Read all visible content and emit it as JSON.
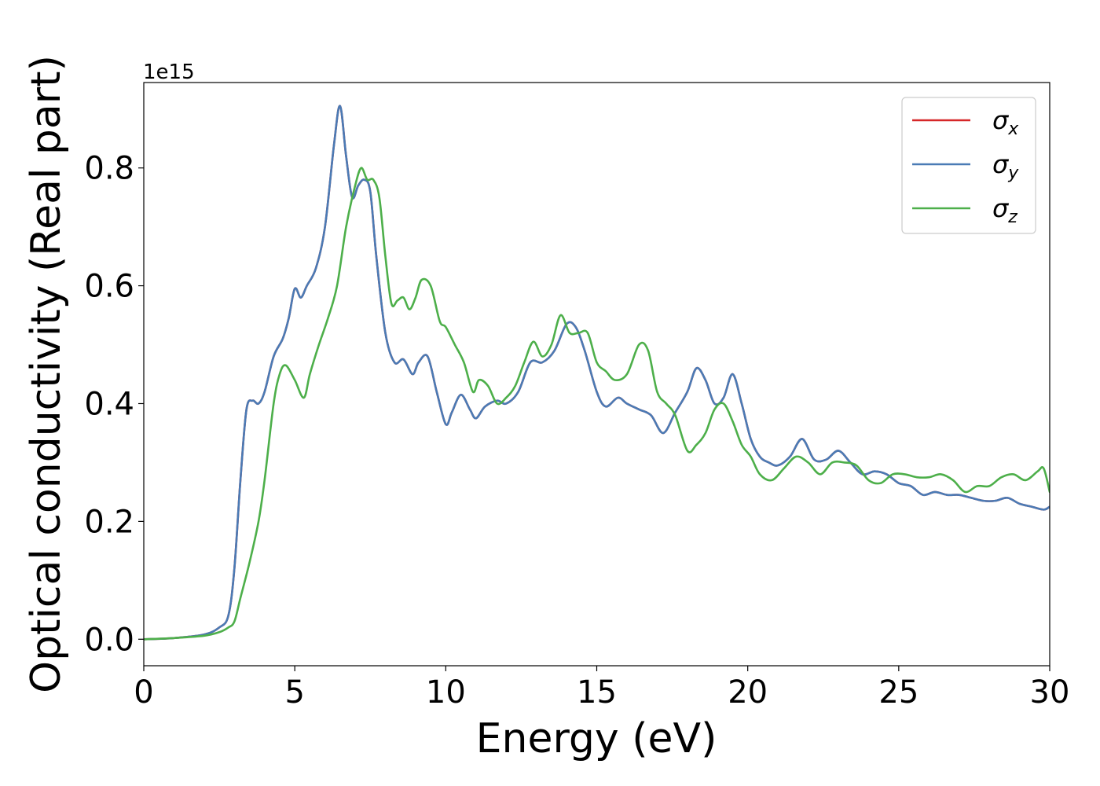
{
  "chart_data": {
    "type": "line",
    "title": "",
    "xlabel": "Energy (eV)",
    "ylabel": "Optical conductivity (Real part)",
    "y_offset_label": "1e15",
    "xlim": [
      0,
      30
    ],
    "ylim": [
      -0.045,
      0.945
    ],
    "x_ticks": [
      0,
      5,
      10,
      15,
      20,
      25,
      30
    ],
    "x_tick_labels": [
      "0",
      "5",
      "10",
      "15",
      "20",
      "25",
      "30"
    ],
    "y_ticks": [
      0.0,
      0.2,
      0.4,
      0.6,
      0.8
    ],
    "y_tick_labels": [
      "0.0",
      "0.2",
      "0.4",
      "0.6",
      "0.8"
    ],
    "grid": false,
    "legend_position": "top-right",
    "series": [
      {
        "name": "σx",
        "symbol": "σ",
        "subscript": "x",
        "color": "#d62728",
        "x": [
          0,
          1,
          2,
          2.5,
          2.8,
          3.0,
          3.2,
          3.4,
          3.6,
          3.8,
          4.0,
          4.3,
          4.6,
          4.8,
          5.0,
          5.2,
          5.4,
          5.7,
          6.0,
          6.3,
          6.5,
          6.7,
          6.9,
          7.1,
          7.3,
          7.5,
          7.7,
          8.0,
          8.3,
          8.6,
          8.9,
          9.1,
          9.4,
          9.7,
          10.0,
          10.2,
          10.5,
          10.8,
          11.0,
          11.3,
          11.7,
          12.0,
          12.4,
          12.8,
          13.2,
          13.6,
          14.0,
          14.3,
          14.6,
          15.0,
          15.3,
          15.7,
          16.0,
          16.4,
          16.8,
          17.2,
          17.6,
          18.0,
          18.3,
          18.6,
          18.9,
          19.2,
          19.5,
          19.8,
          20.1,
          20.4,
          20.7,
          21.0,
          21.4,
          21.8,
          22.2,
          22.6,
          23.0,
          23.4,
          23.8,
          24.2,
          24.6,
          25.0,
          25.4,
          25.8,
          26.2,
          26.6,
          27.0,
          27.4,
          27.8,
          28.2,
          28.6,
          29.0,
          29.4,
          29.8,
          30.0
        ],
        "values": [
          0.0,
          0.002,
          0.008,
          0.02,
          0.04,
          0.12,
          0.27,
          0.39,
          0.405,
          0.4,
          0.42,
          0.48,
          0.51,
          0.545,
          0.595,
          0.58,
          0.6,
          0.63,
          0.7,
          0.84,
          0.905,
          0.82,
          0.75,
          0.77,
          0.78,
          0.76,
          0.65,
          0.52,
          0.47,
          0.475,
          0.45,
          0.47,
          0.48,
          0.42,
          0.365,
          0.385,
          0.415,
          0.39,
          0.375,
          0.395,
          0.405,
          0.4,
          0.42,
          0.47,
          0.47,
          0.49,
          0.535,
          0.53,
          0.49,
          0.42,
          0.395,
          0.41,
          0.4,
          0.39,
          0.38,
          0.35,
          0.385,
          0.42,
          0.46,
          0.44,
          0.4,
          0.41,
          0.45,
          0.4,
          0.34,
          0.31,
          0.3,
          0.295,
          0.31,
          0.34,
          0.305,
          0.305,
          0.32,
          0.3,
          0.28,
          0.285,
          0.28,
          0.265,
          0.26,
          0.245,
          0.25,
          0.245,
          0.245,
          0.24,
          0.235,
          0.235,
          0.24,
          0.23,
          0.225,
          0.22,
          0.225
        ]
      },
      {
        "name": "σy",
        "symbol": "σ",
        "subscript": "y",
        "color": "#4a7bb5",
        "x": [
          0,
          1,
          2,
          2.5,
          2.8,
          3.0,
          3.2,
          3.4,
          3.6,
          3.8,
          4.0,
          4.3,
          4.6,
          4.8,
          5.0,
          5.2,
          5.4,
          5.7,
          6.0,
          6.3,
          6.5,
          6.7,
          6.9,
          7.1,
          7.3,
          7.5,
          7.7,
          8.0,
          8.3,
          8.6,
          8.9,
          9.1,
          9.4,
          9.7,
          10.0,
          10.2,
          10.5,
          10.8,
          11.0,
          11.3,
          11.7,
          12.0,
          12.4,
          12.8,
          13.2,
          13.6,
          14.0,
          14.3,
          14.6,
          15.0,
          15.3,
          15.7,
          16.0,
          16.4,
          16.8,
          17.2,
          17.6,
          18.0,
          18.3,
          18.6,
          18.9,
          19.2,
          19.5,
          19.8,
          20.1,
          20.4,
          20.7,
          21.0,
          21.4,
          21.8,
          22.2,
          22.6,
          23.0,
          23.4,
          23.8,
          24.2,
          24.6,
          25.0,
          25.4,
          25.8,
          26.2,
          26.6,
          27.0,
          27.4,
          27.8,
          28.2,
          28.6,
          29.0,
          29.4,
          29.8,
          30.0
        ],
        "values": [
          0.0,
          0.002,
          0.008,
          0.02,
          0.04,
          0.12,
          0.27,
          0.39,
          0.405,
          0.4,
          0.42,
          0.48,
          0.51,
          0.545,
          0.595,
          0.58,
          0.6,
          0.63,
          0.7,
          0.84,
          0.905,
          0.82,
          0.75,
          0.77,
          0.78,
          0.76,
          0.65,
          0.52,
          0.47,
          0.475,
          0.45,
          0.47,
          0.48,
          0.42,
          0.365,
          0.385,
          0.415,
          0.39,
          0.375,
          0.395,
          0.405,
          0.4,
          0.42,
          0.47,
          0.47,
          0.49,
          0.535,
          0.53,
          0.49,
          0.42,
          0.395,
          0.41,
          0.4,
          0.39,
          0.38,
          0.35,
          0.385,
          0.42,
          0.46,
          0.44,
          0.4,
          0.41,
          0.45,
          0.4,
          0.34,
          0.31,
          0.3,
          0.295,
          0.31,
          0.34,
          0.305,
          0.305,
          0.32,
          0.3,
          0.28,
          0.285,
          0.28,
          0.265,
          0.26,
          0.245,
          0.25,
          0.245,
          0.245,
          0.24,
          0.235,
          0.235,
          0.24,
          0.23,
          0.225,
          0.22,
          0.225
        ]
      },
      {
        "name": "σz",
        "symbol": "σ",
        "subscript": "z",
        "color": "#4daf4a",
        "x": [
          0,
          1,
          2,
          2.5,
          2.8,
          3.0,
          3.2,
          3.5,
          3.8,
          4.0,
          4.3,
          4.5,
          4.7,
          5.0,
          5.3,
          5.5,
          5.8,
          6.1,
          6.4,
          6.7,
          7.0,
          7.2,
          7.4,
          7.6,
          7.8,
          8.0,
          8.2,
          8.4,
          8.6,
          8.8,
          9.0,
          9.2,
          9.5,
          9.8,
          10.0,
          10.3,
          10.6,
          10.9,
          11.1,
          11.4,
          11.7,
          12.0,
          12.3,
          12.6,
          12.9,
          13.2,
          13.5,
          13.8,
          14.1,
          14.4,
          14.7,
          15.0,
          15.3,
          15.6,
          16.0,
          16.4,
          16.7,
          17.0,
          17.3,
          17.6,
          18.0,
          18.3,
          18.6,
          18.9,
          19.2,
          19.5,
          19.8,
          20.1,
          20.4,
          20.8,
          21.2,
          21.6,
          22.0,
          22.4,
          22.8,
          23.2,
          23.6,
          24.0,
          24.4,
          24.8,
          25.2,
          25.6,
          26.0,
          26.4,
          26.8,
          27.2,
          27.6,
          28.0,
          28.4,
          28.8,
          29.2,
          29.6,
          29.8,
          30.0
        ],
        "values": [
          0.0,
          0.002,
          0.006,
          0.012,
          0.02,
          0.03,
          0.07,
          0.13,
          0.2,
          0.27,
          0.4,
          0.45,
          0.465,
          0.44,
          0.41,
          0.45,
          0.5,
          0.545,
          0.6,
          0.7,
          0.77,
          0.8,
          0.78,
          0.78,
          0.75,
          0.65,
          0.57,
          0.575,
          0.58,
          0.56,
          0.58,
          0.61,
          0.6,
          0.54,
          0.53,
          0.5,
          0.47,
          0.42,
          0.44,
          0.43,
          0.4,
          0.41,
          0.43,
          0.47,
          0.505,
          0.48,
          0.5,
          0.55,
          0.52,
          0.52,
          0.52,
          0.47,
          0.455,
          0.44,
          0.45,
          0.5,
          0.49,
          0.42,
          0.4,
          0.38,
          0.32,
          0.33,
          0.35,
          0.39,
          0.4,
          0.37,
          0.33,
          0.31,
          0.28,
          0.27,
          0.29,
          0.31,
          0.3,
          0.28,
          0.3,
          0.3,
          0.295,
          0.27,
          0.265,
          0.28,
          0.28,
          0.275,
          0.275,
          0.28,
          0.27,
          0.25,
          0.26,
          0.26,
          0.275,
          0.28,
          0.27,
          0.285,
          0.29,
          0.25
        ]
      }
    ]
  }
}
